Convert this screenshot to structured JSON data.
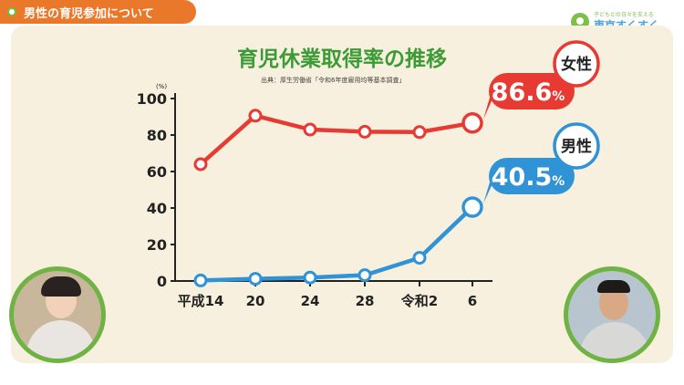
{
  "header": {
    "title": "男性の育児参加について"
  },
  "brand": {
    "tagline": "子どもとの日々を支える",
    "name": "東京すくすく"
  },
  "chart_data": {
    "type": "line",
    "title": "育児休業取得率の推移",
    "source": "出典：厚生労働省「令和6年度雇用均等基本調査」",
    "y_unit": "(%)",
    "ylim": [
      0,
      100
    ],
    "yticks": [
      0,
      20,
      40,
      60,
      80,
      100
    ],
    "categories": [
      "平成14",
      "20",
      "24",
      "28",
      "令和2",
      "6"
    ],
    "series": [
      {
        "name": "女性",
        "color": "#e63a33",
        "values": [
          64.0,
          90.6,
          83.0,
          81.8,
          81.6,
          86.6
        ],
        "end_label": "86.6",
        "end_unit": "%"
      },
      {
        "name": "男性",
        "color": "#2f93d6",
        "values": [
          0.3,
          1.2,
          1.9,
          3.2,
          12.7,
          40.5
        ],
        "end_label": "40.5",
        "end_unit": "%"
      }
    ]
  }
}
